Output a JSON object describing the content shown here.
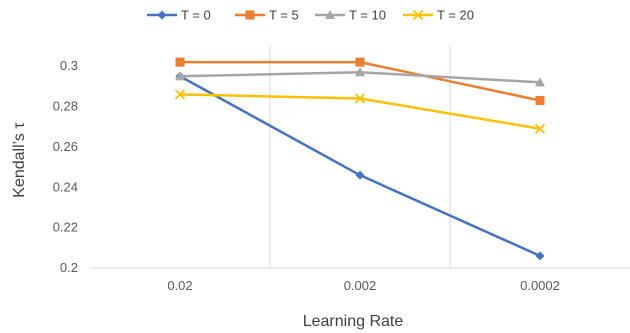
{
  "chart_data": {
    "type": "line",
    "title": "",
    "xlabel": "Learning Rate",
    "ylabel": "Kendall’s τ",
    "categories": [
      "0.02",
      "0.002",
      "0.0002"
    ],
    "ylim": [
      0.2,
      0.31
    ],
    "yticks": [
      "0.2",
      "0.22",
      "0.24",
      "0.26",
      "0.28",
      "0.3"
    ],
    "grid": "vertical",
    "legend_position": "top",
    "series": [
      {
        "name": "T = 0",
        "color": "#4472C4",
        "marker": "diamond",
        "values": [
          0.295,
          0.246,
          0.206
        ]
      },
      {
        "name": "T = 5",
        "color": "#ED7D31",
        "marker": "square",
        "values": [
          0.302,
          0.302,
          0.283
        ]
      },
      {
        "name": "T = 10",
        "color": "#A5A5A5",
        "marker": "triangle",
        "values": [
          0.295,
          0.297,
          0.292
        ]
      },
      {
        "name": "T = 20",
        "color": "#FFC000",
        "marker": "x",
        "values": [
          0.286,
          0.284,
          0.269
        ]
      }
    ]
  }
}
